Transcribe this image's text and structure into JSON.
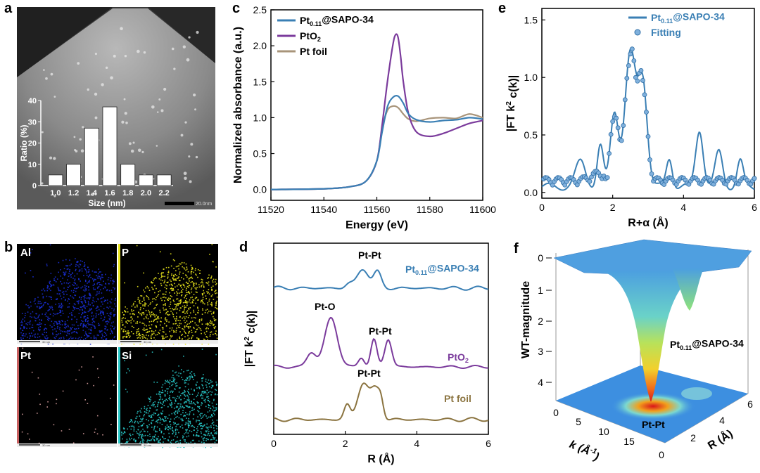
{
  "panels": {
    "a": {
      "label": "a",
      "scale_bar": "20.0nm",
      "histogram": {
        "type": "bar",
        "categories": [
          "1.0",
          "1.2",
          "1.4",
          "1.6",
          "1.8",
          "2.0",
          "2.2"
        ],
        "values": [
          5,
          10,
          27,
          37,
          10,
          5,
          5
        ],
        "ylabel": "Ratio (%)",
        "xlabel": "Size (nm)",
        "yticks": [
          "0",
          "10",
          "20",
          "30",
          "40"
        ],
        "ylim": [
          0,
          40
        ]
      }
    },
    "b": {
      "label": "b",
      "maps": [
        {
          "element": "Al",
          "color": "#1a2fd6",
          "bar": "30 nm"
        },
        {
          "element": "P",
          "color": "#e8e41c",
          "bar": "30 nm"
        },
        {
          "element": "Pt",
          "color": "#d9a0a0",
          "bar": "30 nm"
        },
        {
          "element": "Si",
          "color": "#27c7c7",
          "bar": "30 nm"
        }
      ]
    },
    "c": {
      "label": "c",
      "chart_data": {
        "type": "line",
        "xlabel": "Energy (eV)",
        "ylabel": "Normalized absorbance (a.u.)",
        "xlim": [
          11520,
          11600
        ],
        "ylim": [
          -0.15,
          2.5
        ],
        "xticks": [
          "11520",
          "11540",
          "11560",
          "11580",
          "11600"
        ],
        "yticks": [
          "0.0",
          "0.5",
          "1.0",
          "1.5",
          "2.0",
          "2.5"
        ],
        "series": [
          {
            "name_main": "Pt",
            "name_sub": "0.11",
            "name_rest": "@SAPO-34",
            "color": "#3a7fb4",
            "x": [
              11520,
              11540,
              11550,
              11556,
              11560,
              11562,
              11564,
              11566,
              11568,
              11570,
              11572,
              11575,
              11580,
              11585,
              11590,
              11595,
              11600
            ],
            "y": [
              0.0,
              0.01,
              0.04,
              0.12,
              0.4,
              0.8,
              1.15,
              1.28,
              1.3,
              1.2,
              1.05,
              0.97,
              0.94,
              0.96,
              0.97,
              1.0,
              0.98
            ]
          },
          {
            "name_main": "PtO",
            "name_sub": "2",
            "name_rest": "",
            "color": "#7b3b9c",
            "x": [
              11520,
              11540,
              11550,
              11556,
              11560,
              11562,
              11564,
              11566,
              11567,
              11568,
              11569,
              11570,
              11572,
              11575,
              11580,
              11585,
              11590,
              11595,
              11600
            ],
            "y": [
              0.0,
              0.01,
              0.04,
              0.12,
              0.4,
              0.9,
              1.5,
              2.0,
              2.15,
              2.12,
              1.85,
              1.5,
              1.05,
              0.8,
              0.74,
              0.78,
              0.85,
              0.92,
              0.96
            ]
          },
          {
            "name_main": "Pt foil",
            "name_sub": "",
            "name_rest": "",
            "color": "#a8947a",
            "x": [
              11520,
              11540,
              11550,
              11556,
              11560,
              11562,
              11564,
              11566,
              11568,
              11570,
              11572,
              11575,
              11580,
              11585,
              11590,
              11595,
              11600
            ],
            "y": [
              0.0,
              0.01,
              0.04,
              0.12,
              0.4,
              0.85,
              1.1,
              1.16,
              1.14,
              1.05,
              0.98,
              0.95,
              0.99,
              1.0,
              0.99,
              1.05,
              1.0
            ]
          }
        ]
      }
    },
    "d": {
      "label": "d",
      "chart_data": {
        "type": "line",
        "xlabel": "R (Å)",
        "ylabel_main": "|FT k",
        "ylabel_sup": "2",
        "ylabel_rest": " c(k)|",
        "xlim": [
          0,
          6
        ],
        "xticks": [
          "0",
          "2",
          "4",
          "6"
        ],
        "series": [
          {
            "name_main": "Pt",
            "name_sub": "0.11",
            "name_rest": "@SAPO-34",
            "color": "#3a7fb4",
            "annotation": "Pt-Pt"
          },
          {
            "name_main": "PtO",
            "name_sub": "2",
            "name_rest": "",
            "color": "#7b3b9c",
            "annotation_1": "Pt-O",
            "annotation_2": "Pt-Pt"
          },
          {
            "name_main": "Pt foil",
            "name_sub": "",
            "name_rest": "",
            "color": "#8b7440",
            "annotation": "Pt-Pt"
          }
        ]
      }
    },
    "e": {
      "label": "e",
      "chart_data": {
        "type": "line",
        "xlabel": "R+α (Å)",
        "ylabel_main": "|FT k",
        "ylabel_sup": "2",
        "ylabel_rest": " c(k)|",
        "xlim": [
          0,
          6
        ],
        "ylim": [
          -0.05,
          1.6
        ],
        "xticks": [
          "0",
          "2",
          "4",
          "6"
        ],
        "yticks": [
          "0.0",
          "0.5",
          "1.0",
          "1.5"
        ],
        "series": [
          {
            "name_main": "Pt",
            "name_sub": "0.11",
            "name_rest": "@SAPO-34",
            "color": "#3a7fb4",
            "style": "line"
          },
          {
            "name_main": "Fitting",
            "name_sub": "",
            "name_rest": "",
            "color": "#3a7fb4",
            "style": "markers"
          }
        ]
      }
    },
    "f": {
      "label": "f",
      "zlabel": "WT-magnitude",
      "zticks": [
        "0",
        "1",
        "2",
        "3",
        "4"
      ],
      "k_label": "k (Å",
      "k_sup": "-1",
      "k_tail": ")",
      "k_ticks": [
        "0",
        "5",
        "10",
        "15"
      ],
      "r_label": "R (Å)",
      "r_ticks": [
        "0",
        "2",
        "4",
        "6"
      ],
      "sample_main": "Pt",
      "sample_sub": "0.11",
      "sample_rest": "@SAPO-34",
      "peak_label": "Pt-Pt"
    }
  }
}
